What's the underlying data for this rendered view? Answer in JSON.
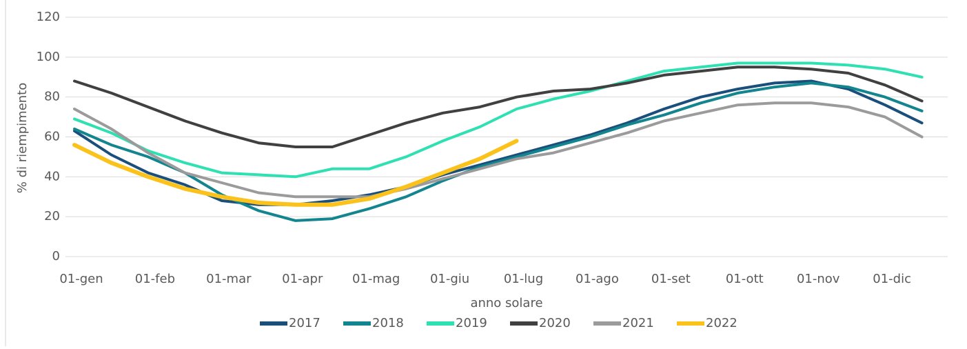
{
  "chart_data": {
    "type": "line",
    "x_label": "anno solare",
    "y_label": "% di riempimento",
    "categories": [
      "01-gen",
      null,
      "01-feb",
      null,
      "01-mar",
      null,
      "01-apr",
      null,
      "01-mag",
      null,
      "01-giu",
      null,
      "01-lug",
      null,
      "01-ago",
      null,
      "01-set",
      null,
      "01-ott",
      null,
      "01-nov",
      null,
      "01-dic",
      null
    ],
    "series": [
      {
        "name": "2017",
        "color": "#1b4f7b",
        "values": [
          63,
          51,
          42,
          36,
          28,
          26,
          26,
          28,
          31,
          35,
          41,
          46,
          51,
          56,
          61,
          67,
          74,
          80,
          84,
          87,
          88,
          84,
          76,
          67
        ]
      },
      {
        "name": "2018",
        "color": "#13858f",
        "values": [
          64,
          56,
          50,
          42,
          31,
          23,
          18,
          19,
          24,
          30,
          38,
          45,
          50,
          55,
          60,
          66,
          71,
          77,
          82,
          85,
          87,
          85,
          80,
          73
        ]
      },
      {
        "name": "2019",
        "color": "#2fe0b2",
        "values": [
          69,
          62,
          53,
          47,
          42,
          41,
          40,
          44,
          44,
          50,
          58,
          65,
          74,
          79,
          83,
          88,
          93,
          95,
          97,
          97,
          97,
          96,
          94,
          90
        ]
      },
      {
        "name": "2020",
        "color": "#404040",
        "values": [
          88,
          82,
          75,
          68,
          62,
          57,
          55,
          55,
          61,
          67,
          72,
          75,
          80,
          83,
          84,
          87,
          91,
          93,
          95,
          95,
          94,
          92,
          86,
          78
        ]
      },
      {
        "name": "2021",
        "color": "#9b9b9b",
        "values": [
          74,
          64,
          52,
          42,
          37,
          32,
          30,
          30,
          30,
          34,
          39,
          44,
          49,
          52,
          57,
          62,
          68,
          72,
          76,
          77,
          77,
          75,
          70,
          60
        ]
      },
      {
        "name": "2022",
        "color": "#fbc21b",
        "values": [
          56,
          47,
          40,
          34,
          30,
          27,
          26,
          26,
          29,
          35,
          42,
          49,
          58,
          null,
          null,
          null,
          null,
          null,
          null,
          null,
          null,
          null,
          null,
          null
        ]
      }
    ],
    "ylim": [
      0,
      120
    ],
    "yticks": [
      0,
      20,
      40,
      60,
      80,
      100,
      120
    ],
    "grid": true,
    "legend": "bottom"
  }
}
